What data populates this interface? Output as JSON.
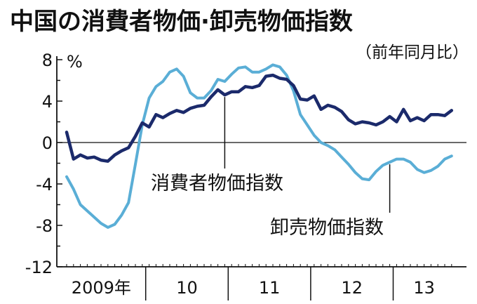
{
  "chart_data": {
    "type": "line",
    "title": "中国の消費者物価·卸売物価指数",
    "subtitle": "（前年同月比）",
    "unit": "%",
    "ylim": [
      -12,
      8
    ],
    "yticks": [
      "8",
      "4",
      "0",
      "-4",
      "-8",
      "-12"
    ],
    "year_labels": [
      "2009年",
      "10",
      "11",
      "12",
      "13"
    ],
    "x": [
      "2009-01",
      "2009-02",
      "2009-03",
      "2009-04",
      "2009-05",
      "2009-06",
      "2009-07",
      "2009-08",
      "2009-09",
      "2009-10",
      "2009-11",
      "2009-12",
      "2010-01",
      "2010-02",
      "2010-03",
      "2010-04",
      "2010-05",
      "2010-06",
      "2010-07",
      "2010-08",
      "2010-09",
      "2010-10",
      "2010-11",
      "2010-12",
      "2011-01",
      "2011-02",
      "2011-03",
      "2011-04",
      "2011-05",
      "2011-06",
      "2011-07",
      "2011-08",
      "2011-09",
      "2011-10",
      "2011-11",
      "2011-12",
      "2012-01",
      "2012-02",
      "2012-03",
      "2012-04",
      "2012-05",
      "2012-06",
      "2012-07",
      "2012-08",
      "2012-09",
      "2012-10",
      "2012-11",
      "2012-12",
      "2013-01",
      "2013-02",
      "2013-03",
      "2013-04",
      "2013-05",
      "2013-06",
      "2013-07",
      "2013-08",
      "2013-09"
    ],
    "series": [
      {
        "name": "消費者物価指数",
        "color": "#1b2a6b",
        "values": [
          1.0,
          -1.6,
          -1.2,
          -1.5,
          -1.4,
          -1.7,
          -1.8,
          -1.2,
          -0.8,
          -0.5,
          0.6,
          1.9,
          1.5,
          2.7,
          2.4,
          2.8,
          3.1,
          2.9,
          3.3,
          3.5,
          3.6,
          4.4,
          5.1,
          4.6,
          4.9,
          4.9,
          5.4,
          5.3,
          5.5,
          6.4,
          6.5,
          6.2,
          6.1,
          5.5,
          4.2,
          4.1,
          4.5,
          3.2,
          3.6,
          3.4,
          3.0,
          2.2,
          1.8,
          2.0,
          1.9,
          1.7,
          2.0,
          2.5,
          2.0,
          3.2,
          2.1,
          2.4,
          2.1,
          2.7,
          2.7,
          2.6,
          3.1
        ]
      },
      {
        "name": "卸売物価指数",
        "color": "#5aaed6",
        "values": [
          -3.3,
          -4.5,
          -6.0,
          -6.6,
          -7.2,
          -7.8,
          -8.2,
          -7.9,
          -7.0,
          -5.8,
          -2.1,
          1.7,
          4.3,
          5.4,
          5.9,
          6.8,
          7.1,
          6.4,
          4.8,
          4.3,
          4.3,
          5.0,
          6.1,
          5.9,
          6.6,
          7.2,
          7.3,
          6.8,
          6.8,
          7.1,
          7.5,
          7.3,
          6.5,
          5.0,
          2.7,
          1.7,
          0.7,
          0.0,
          -0.3,
          -0.7,
          -1.4,
          -2.1,
          -2.9,
          -3.5,
          -3.6,
          -2.8,
          -2.2,
          -1.9,
          -1.6,
          -1.6,
          -1.9,
          -2.6,
          -2.9,
          -2.7,
          -2.3,
          -1.6,
          -1.3
        ]
      }
    ],
    "annotations": [
      "消費者物価指数",
      "卸売物価指数"
    ]
  }
}
